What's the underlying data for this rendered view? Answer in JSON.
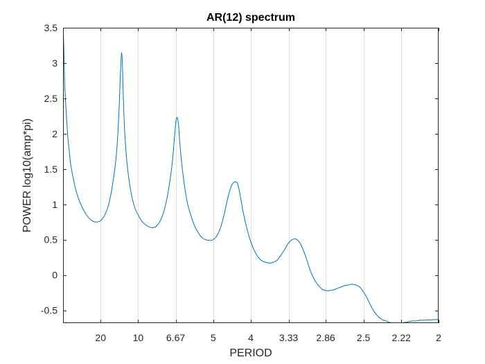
{
  "chart_data": {
    "type": "line",
    "title": "AR(12)  spectrum",
    "xlabel": "PERIOD",
    "ylabel": "POWER  log10(amp*pi)",
    "x_scale": "frequency (1/period)",
    "xlim": [
      0.0,
      0.5
    ],
    "ylim": [
      -0.68,
      3.5
    ],
    "x_ticks": [
      {
        "period": 20,
        "label": "20"
      },
      {
        "period": 10,
        "label": "10"
      },
      {
        "period": 6.67,
        "label": "6.67"
      },
      {
        "period": 5,
        "label": "5"
      },
      {
        "period": 4,
        "label": "4"
      },
      {
        "period": 3.33,
        "label": "3.33"
      },
      {
        "period": 2.86,
        "label": "2.86"
      },
      {
        "period": 2.5,
        "label": "2.5"
      },
      {
        "period": 2.22,
        "label": "2.22"
      },
      {
        "period": 2,
        "label": "2"
      }
    ],
    "y_ticks": [
      {
        "value": 3.5,
        "label": "3.5"
      },
      {
        "value": 3,
        "label": "3"
      },
      {
        "value": 2.5,
        "label": "2.5"
      },
      {
        "value": 2,
        "label": "2"
      },
      {
        "value": 1.5,
        "label": "1.5"
      },
      {
        "value": 1,
        "label": "1"
      },
      {
        "value": 0.5,
        "label": "0.5"
      },
      {
        "value": 0,
        "label": "0"
      },
      {
        "value": -0.5,
        "label": "-0.5"
      }
    ],
    "grid": "vertical at x ticks",
    "series": [
      {
        "color": "#0072BD",
        "points": [
          [
            0.0,
            3.5
          ],
          [
            0.001,
            3.25
          ],
          [
            0.002,
            2.75
          ],
          [
            0.004,
            2.35
          ],
          [
            0.006,
            2.0
          ],
          [
            0.008,
            1.78
          ],
          [
            0.01,
            1.58
          ],
          [
            0.013,
            1.4
          ],
          [
            0.016,
            1.25
          ],
          [
            0.02,
            1.1
          ],
          [
            0.025,
            0.97
          ],
          [
            0.03,
            0.87
          ],
          [
            0.035,
            0.8
          ],
          [
            0.04,
            0.76
          ],
          [
            0.045,
            0.75
          ],
          [
            0.05,
            0.77
          ],
          [
            0.055,
            0.84
          ],
          [
            0.06,
            0.97
          ],
          [
            0.065,
            1.22
          ],
          [
            0.07,
            1.6
          ],
          [
            0.073,
            2.0
          ],
          [
            0.075,
            2.45
          ],
          [
            0.076,
            2.75
          ],
          [
            0.077,
            3.0
          ],
          [
            0.078,
            3.15
          ],
          [
            0.079,
            3.0
          ],
          [
            0.08,
            2.6
          ],
          [
            0.082,
            2.05
          ],
          [
            0.085,
            1.6
          ],
          [
            0.09,
            1.2
          ],
          [
            0.095,
            0.97
          ],
          [
            0.1,
            0.85
          ],
          [
            0.105,
            0.76
          ],
          [
            0.11,
            0.71
          ],
          [
            0.115,
            0.68
          ],
          [
            0.12,
            0.67
          ],
          [
            0.125,
            0.7
          ],
          [
            0.13,
            0.78
          ],
          [
            0.135,
            0.93
          ],
          [
            0.14,
            1.18
          ],
          [
            0.145,
            1.55
          ],
          [
            0.148,
            1.9
          ],
          [
            0.15,
            2.15
          ],
          [
            0.152,
            2.23
          ],
          [
            0.154,
            2.1
          ],
          [
            0.156,
            1.8
          ],
          [
            0.16,
            1.4
          ],
          [
            0.165,
            1.05
          ],
          [
            0.17,
            0.85
          ],
          [
            0.175,
            0.7
          ],
          [
            0.18,
            0.6
          ],
          [
            0.185,
            0.53
          ],
          [
            0.19,
            0.5
          ],
          [
            0.195,
            0.49
          ],
          [
            0.2,
            0.5
          ],
          [
            0.205,
            0.56
          ],
          [
            0.21,
            0.68
          ],
          [
            0.215,
            0.88
          ],
          [
            0.22,
            1.12
          ],
          [
            0.225,
            1.28
          ],
          [
            0.23,
            1.32
          ],
          [
            0.233,
            1.27
          ],
          [
            0.236,
            1.12
          ],
          [
            0.24,
            0.88
          ],
          [
            0.245,
            0.65
          ],
          [
            0.25,
            0.47
          ],
          [
            0.255,
            0.34
          ],
          [
            0.26,
            0.25
          ],
          [
            0.265,
            0.2
          ],
          [
            0.27,
            0.18
          ],
          [
            0.275,
            0.17
          ],
          [
            0.28,
            0.18
          ],
          [
            0.285,
            0.21
          ],
          [
            0.29,
            0.28
          ],
          [
            0.295,
            0.36
          ],
          [
            0.3,
            0.45
          ],
          [
            0.305,
            0.5
          ],
          [
            0.31,
            0.51
          ],
          [
            0.315,
            0.46
          ],
          [
            0.32,
            0.35
          ],
          [
            0.325,
            0.2
          ],
          [
            0.33,
            0.04
          ],
          [
            0.335,
            -0.07
          ],
          [
            0.34,
            -0.15
          ],
          [
            0.345,
            -0.2
          ],
          [
            0.35,
            -0.22
          ],
          [
            0.355,
            -0.22
          ],
          [
            0.36,
            -0.21
          ],
          [
            0.365,
            -0.19
          ],
          [
            0.37,
            -0.17
          ],
          [
            0.375,
            -0.15
          ],
          [
            0.38,
            -0.14
          ],
          [
            0.385,
            -0.13
          ],
          [
            0.39,
            -0.14
          ],
          [
            0.395,
            -0.17
          ],
          [
            0.4,
            -0.24
          ],
          [
            0.405,
            -0.33
          ],
          [
            0.41,
            -0.44
          ],
          [
            0.415,
            -0.53
          ],
          [
            0.42,
            -0.59
          ],
          [
            0.425,
            -0.63
          ],
          [
            0.43,
            -0.65
          ],
          [
            0.435,
            -0.67
          ],
          [
            0.44,
            -0.68
          ],
          [
            0.445,
            -0.68
          ],
          [
            0.45,
            -0.68
          ],
          [
            0.455,
            -0.67
          ],
          [
            0.46,
            -0.66
          ],
          [
            0.465,
            -0.65
          ],
          [
            0.47,
            -0.65
          ],
          [
            0.475,
            -0.64
          ],
          [
            0.48,
            -0.64
          ],
          [
            0.485,
            -0.635
          ],
          [
            0.49,
            -0.635
          ],
          [
            0.495,
            -0.63
          ],
          [
            0.5,
            -0.63
          ]
        ]
      }
    ]
  }
}
